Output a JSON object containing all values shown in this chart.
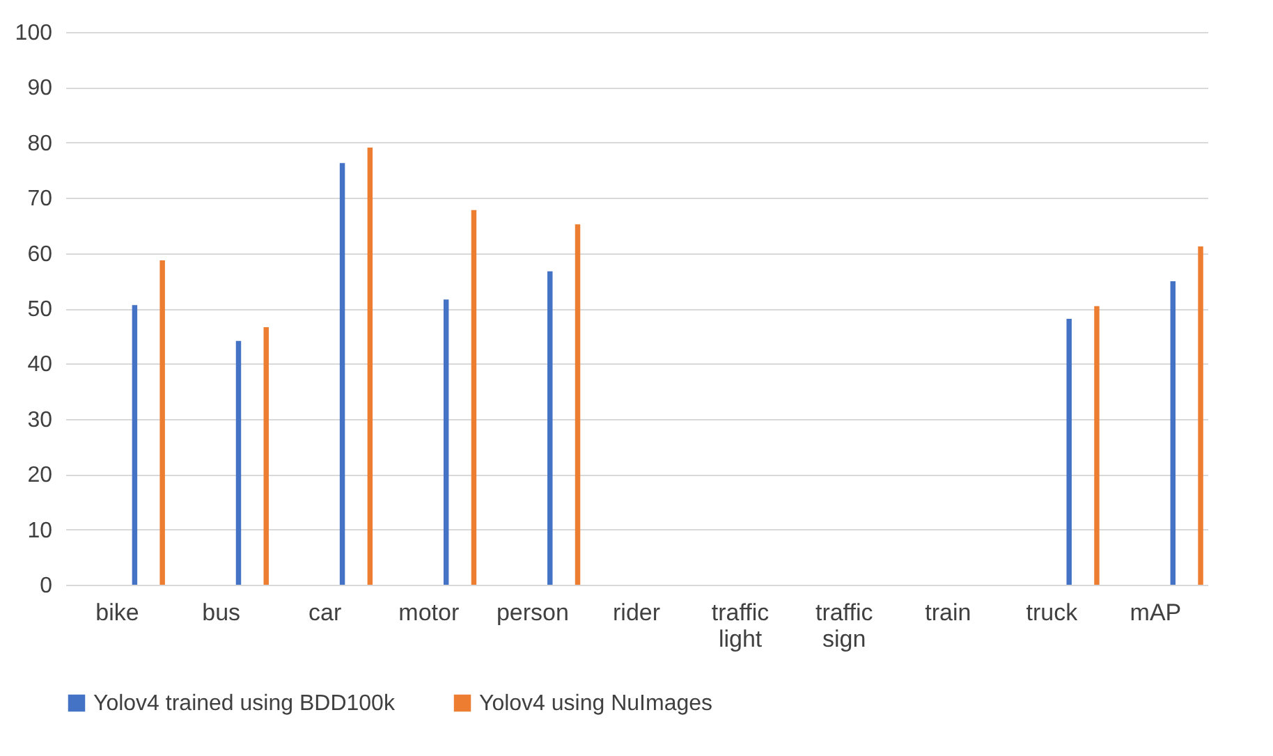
{
  "chart_data": {
    "type": "bar",
    "categories": [
      "bike",
      "bus",
      "car",
      "motor",
      "person",
      "rider",
      "traffic light",
      "traffic sign",
      "train",
      "truck",
      "mAP"
    ],
    "series": [
      {
        "name": "Yolov4 trained using BDD100k",
        "color": "#4472c4",
        "values": [
          50.6,
          44.1,
          76.3,
          51.6,
          56.7,
          null,
          null,
          null,
          null,
          48.1,
          54.9
        ]
      },
      {
        "name": "Yolov4 using NuImages",
        "color": "#ed7d31",
        "values": [
          58.7,
          46.6,
          79.1,
          67.8,
          65.2,
          null,
          null,
          null,
          null,
          50.4,
          61.2
        ]
      }
    ],
    "ylim": [
      0,
      100
    ],
    "yticks": [
      0,
      10,
      20,
      30,
      40,
      50,
      60,
      70,
      80,
      90,
      100
    ],
    "grid": "y",
    "legend": "bottom"
  }
}
